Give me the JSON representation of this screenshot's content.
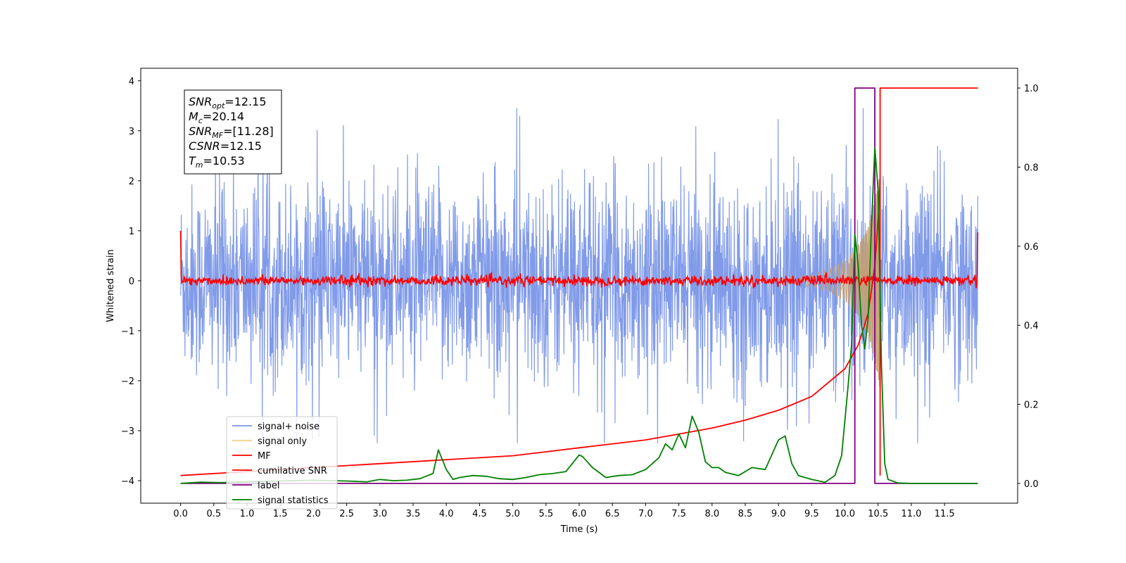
{
  "chart_data": {
    "type": "line",
    "title": "",
    "xlabel": "Time (s)",
    "ylabel": "Whitened strain",
    "xlim": [
      -0.6,
      12.6
    ],
    "ylim": [
      -4.45,
      4.25
    ],
    "y2lim": [
      -0.05,
      1.05
    ],
    "xticks": [
      "0.0",
      "0.5",
      "1.0",
      "1.5",
      "2.0",
      "2.5",
      "3.0",
      "3.5",
      "4.0",
      "4.5",
      "5.0",
      "5.5",
      "6.0",
      "6.5",
      "7.0",
      "7.5",
      "8.0",
      "8.5",
      "9.0",
      "9.5",
      "10.0",
      "10.5",
      "11.0",
      "11.5"
    ],
    "yticks": [
      "4",
      "3",
      "2",
      "1",
      "0",
      "−1",
      "−2",
      "−3",
      "−4"
    ],
    "y2ticks": [
      "1.0",
      "0.8",
      "0.6",
      "0.4",
      "0.2",
      "0.0"
    ],
    "grid": false,
    "legend_position": "lower-left",
    "legend": [
      {
        "label": "signal+ noise",
        "color": "#7a96e8"
      },
      {
        "label": "signal only",
        "color": "#f5c66b"
      },
      {
        "label": "MF",
        "color": "#ff0000"
      },
      {
        "label": "cumilative SNR",
        "color": "#ff0000"
      },
      {
        "label": "label",
        "color": "#800080"
      },
      {
        "label": "signal statistics",
        "color": "#008000"
      }
    ],
    "annotations": {
      "snr_opt": {
        "sym": "SNR",
        "sub": "opt",
        "value": "=12.15"
      },
      "mc": {
        "sym": "M",
        "sub": "c",
        "value": "=20.14"
      },
      "snr_mf": {
        "sym": "SNR",
        "sub": "MF",
        "value": "=[11.28]"
      },
      "csnr": {
        "sym": "CSNR",
        "sub": "",
        "value": "=12.15"
      },
      "tm": {
        "sym": "T",
        "sub": "m",
        "value": "=10.53"
      }
    },
    "series": [
      {
        "name": "signal+ noise",
        "axis": "left",
        "description": "noise band approx. gaussian amplitude ~1 sampled 0-12 s",
        "x_range": [
          0.0,
          12.0
        ],
        "approx_range": [
          -3.2,
          3.4
        ]
      },
      {
        "name": "signal only",
        "axis": "left",
        "description": "chirp growing near merger",
        "x": [
          9.0,
          9.5,
          9.8,
          10.0,
          10.2,
          10.35,
          10.45,
          10.5,
          10.53
        ],
        "envelope": [
          0.05,
          0.12,
          0.25,
          0.4,
          0.7,
          1.1,
          1.6,
          2.0,
          2.2
        ]
      },
      {
        "name": "MF",
        "axis": "left",
        "x_range": [
          0.0,
          12.0
        ],
        "approx_range": [
          -0.15,
          0.15
        ],
        "edges": {
          "start": 1.0,
          "end": 0.97
        }
      },
      {
        "name": "cumilative SNR",
        "axis": "right",
        "x": [
          0.0,
          1.0,
          2.0,
          3.0,
          4.0,
          5.0,
          6.0,
          7.0,
          7.5,
          8.0,
          8.5,
          9.0,
          9.5,
          10.0,
          10.2,
          10.35,
          10.45,
          10.5,
          10.53
        ],
        "y": [
          0.02,
          0.03,
          0.04,
          0.05,
          0.06,
          0.07,
          0.09,
          0.11,
          0.125,
          0.14,
          0.16,
          0.185,
          0.22,
          0.29,
          0.35,
          0.43,
          0.55,
          0.67,
          0.76
        ]
      },
      {
        "name": "label",
        "axis": "right",
        "x": [
          0.0,
          10.15,
          10.15,
          10.45,
          10.45,
          12.0
        ],
        "y": [
          0.0,
          0.0,
          1.0,
          1.0,
          0.0,
          0.0
        ]
      },
      {
        "name": "label",
        "axis": "right",
        "x": [
          10.53,
          10.53,
          12.0
        ],
        "y": [
          0.02,
          1.0,
          1.0
        ]
      },
      {
        "name": "signal statistics",
        "axis": "right",
        "x": [
          0.0,
          0.3,
          0.6,
          1.0,
          1.5,
          2.0,
          2.5,
          2.8,
          3.0,
          3.2,
          3.4,
          3.6,
          3.8,
          3.88,
          4.0,
          4.1,
          4.2,
          4.4,
          4.6,
          4.8,
          5.0,
          5.2,
          5.4,
          5.6,
          5.8,
          6.0,
          6.05,
          6.2,
          6.4,
          6.6,
          6.8,
          7.0,
          7.2,
          7.3,
          7.4,
          7.5,
          7.6,
          7.7,
          7.8,
          7.9,
          8.0,
          8.1,
          8.2,
          8.4,
          8.6,
          8.8,
          9.0,
          9.1,
          9.2,
          9.3,
          9.5,
          9.7,
          9.85,
          9.95,
          10.05,
          10.1,
          10.15,
          10.2,
          10.25,
          10.3,
          10.35,
          10.4,
          10.45,
          10.5,
          10.55,
          10.6,
          10.65,
          10.8,
          11.0,
          12.0
        ],
        "y": [
          0.0,
          0.003,
          0.002,
          0.004,
          0.006,
          0.008,
          0.006,
          0.004,
          0.01,
          0.007,
          0.008,
          0.012,
          0.025,
          0.085,
          0.035,
          0.01,
          0.015,
          0.02,
          0.018,
          0.012,
          0.01,
          0.015,
          0.022,
          0.025,
          0.03,
          0.072,
          0.068,
          0.04,
          0.015,
          0.02,
          0.022,
          0.035,
          0.065,
          0.1,
          0.085,
          0.125,
          0.09,
          0.17,
          0.13,
          0.055,
          0.04,
          0.04,
          0.028,
          0.02,
          0.04,
          0.035,
          0.11,
          0.12,
          0.05,
          0.02,
          0.01,
          0.003,
          0.02,
          0.07,
          0.25,
          0.35,
          0.63,
          0.55,
          0.4,
          0.34,
          0.42,
          0.65,
          0.85,
          0.74,
          0.3,
          0.05,
          0.01,
          0.001,
          0.0,
          0.0
        ]
      }
    ]
  }
}
